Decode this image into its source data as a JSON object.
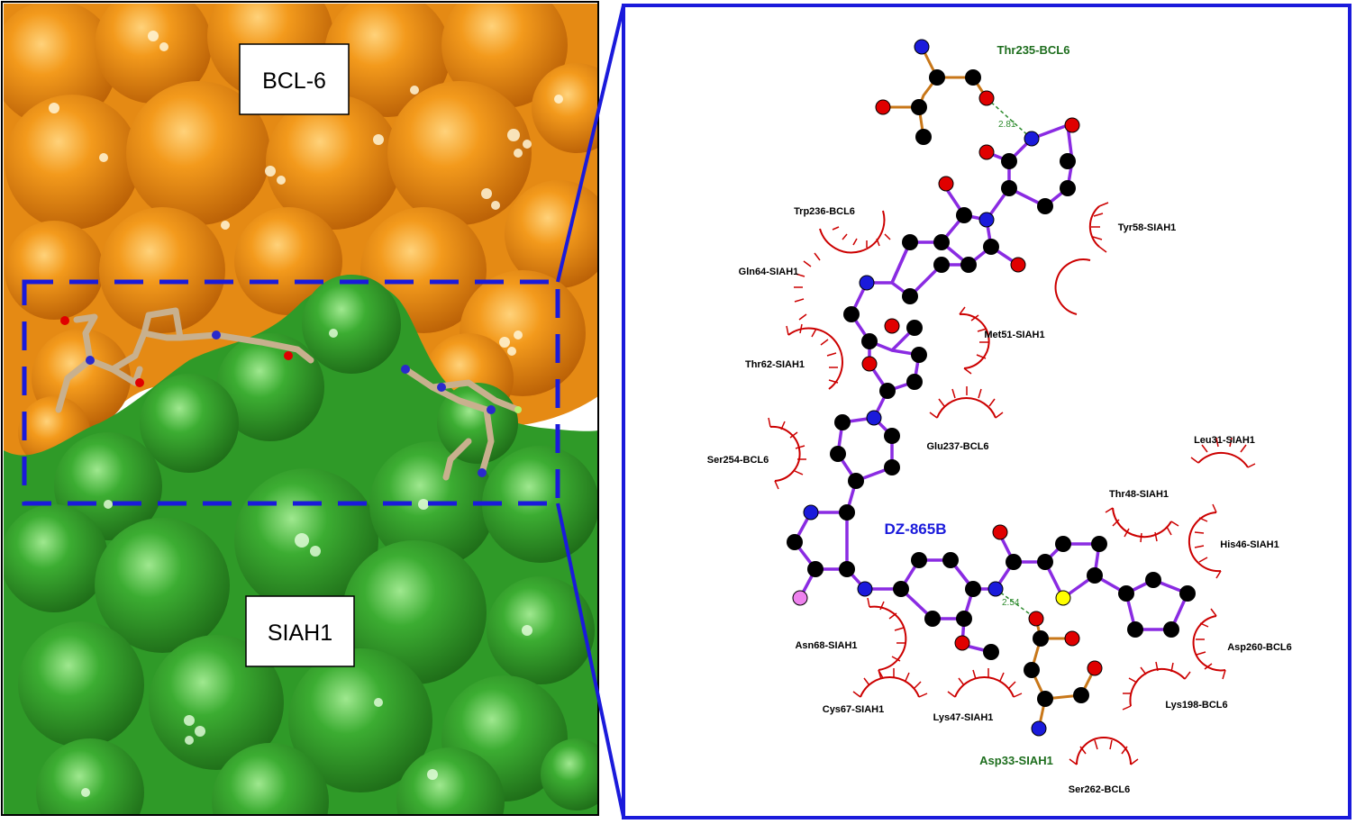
{
  "left_panel": {
    "protein_top_label": "BCL-6",
    "protein_bottom_label": "SIAH1",
    "colors": {
      "top_surface": "#f2920f",
      "bottom_surface": "#3fae32",
      "box": "#1a1adb",
      "ligand_sticks": "#c8b08e"
    }
  },
  "right_panel": {
    "ligand_name": "DZ-865B",
    "hbond_residues": [
      {
        "name": "Thr235-BCL6",
        "distance": "2.81"
      },
      {
        "name": "Asp33-SIAH1",
        "distance": "2.54"
      }
    ],
    "hydrophobic_residues": [
      "Trp236-BCL6",
      "Tyr58-SIAH1",
      "Gln64-SIAH1",
      "Met51-SIAH1",
      "Thr62-SIAH1",
      "Glu237-BCL6",
      "Ser254-BCL6",
      "Leu31-SIAH1",
      "Thr48-SIAH1",
      "His46-SIAH1",
      "Asn68-SIAH1",
      "Asp260-BCL6",
      "Cys67-SIAH1",
      "Lys47-SIAH1",
      "Lys198-BCL6",
      "Ser262-BCL6"
    ],
    "colors": {
      "ligand_bond": "#8a2be2",
      "residue_bond": "#c87719",
      "carbon": "#000000",
      "nitrogen": "#1a1adb",
      "oxygen": "#e00000",
      "sulfur": "#ffff00",
      "fluorine": "#ee82ee",
      "hbond": "#2e8b2e",
      "arc": "#cc0000",
      "hbond_label": "#1e6e1e",
      "ligand_label": "#1a1adb"
    }
  }
}
